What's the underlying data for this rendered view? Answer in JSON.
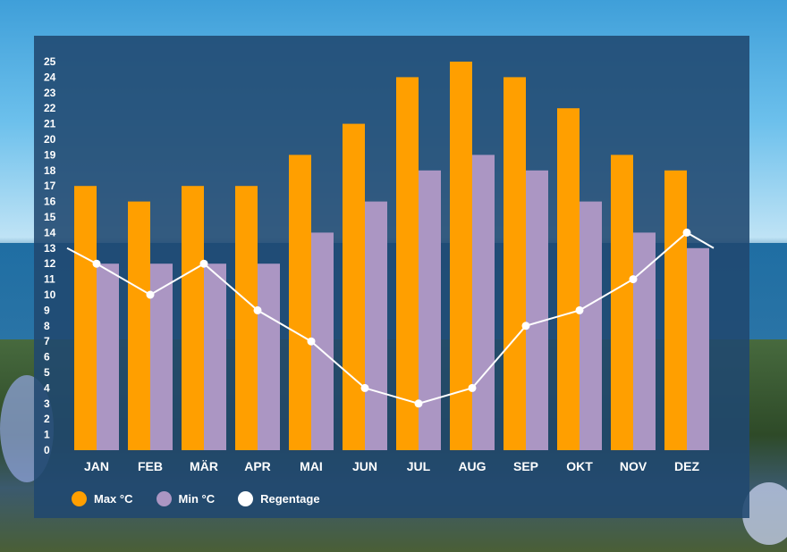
{
  "colors": {
    "max": "#ff9f00",
    "min": "#ab96c3",
    "rain": "#ffffff",
    "panel": "#204870"
  },
  "legend": {
    "max_label": "Max °C",
    "min_label": "Min °C",
    "rain_label": "Regentage"
  },
  "chart_data": {
    "type": "bar",
    "categories": [
      "JAN",
      "FEB",
      "MÄR",
      "APR",
      "MAI",
      "JUN",
      "JUL",
      "AUG",
      "SEP",
      "OKT",
      "NOV",
      "DEZ"
    ],
    "ylim": [
      0,
      25
    ],
    "yticks": [
      0,
      1,
      2,
      3,
      4,
      5,
      6,
      7,
      8,
      9,
      10,
      11,
      12,
      13,
      14,
      15,
      16,
      17,
      18,
      19,
      20,
      21,
      22,
      23,
      24,
      25
    ],
    "series": [
      {
        "name": "Max °C",
        "type": "bar",
        "values": [
          17,
          16,
          17,
          17,
          19,
          21,
          24,
          25,
          24,
          22,
          19,
          18
        ]
      },
      {
        "name": "Min °C",
        "type": "bar",
        "values": [
          12,
          12,
          12,
          12,
          14,
          16,
          18,
          19,
          18,
          16,
          14,
          13
        ]
      },
      {
        "name": "Regentage",
        "type": "line",
        "values": [
          12,
          10,
          12,
          9,
          7,
          4,
          3,
          4,
          8,
          9,
          11,
          14
        ]
      }
    ],
    "grid": false,
    "legend_position": "bottom-left"
  }
}
